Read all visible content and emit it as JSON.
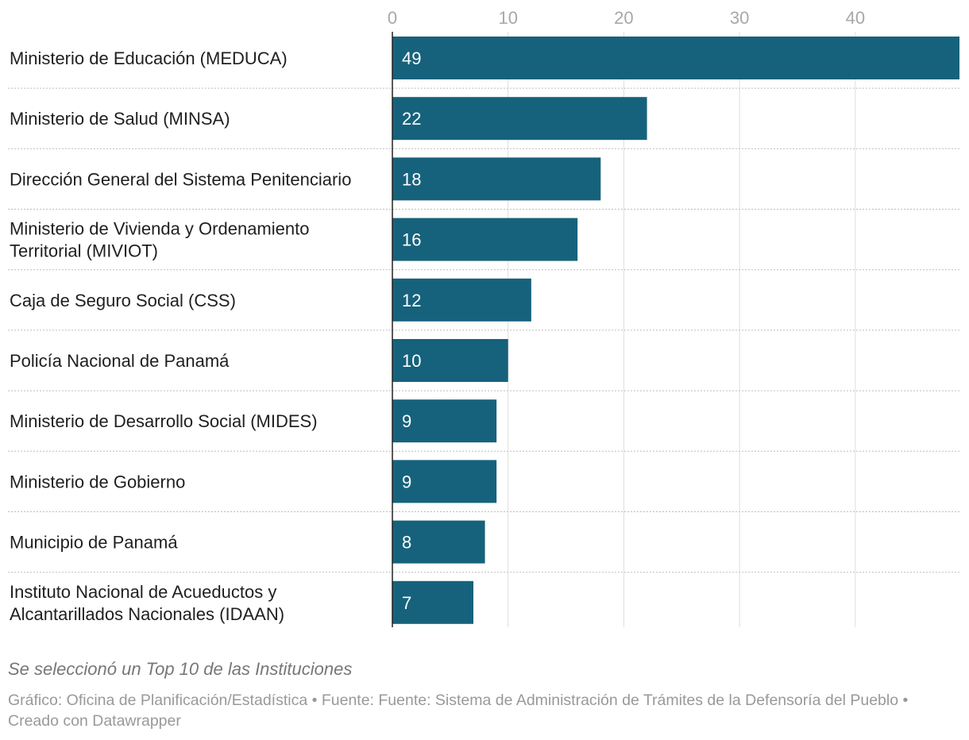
{
  "chart_data": {
    "type": "bar",
    "orientation": "horizontal",
    "categories": [
      "Ministerio de Educación (MEDUCA)",
      "Ministerio de Salud (MINSA)",
      "Dirección General del Sistema Penitenciario",
      "Ministerio de Vivienda y Ordenamiento Territorial (MIVIOT)",
      "Caja de Seguro Social (CSS)",
      "Policía Nacional de Panamá",
      "Ministerio de Desarrollo Social (MIDES)",
      "Ministerio de Gobierno",
      "Municipio de Panamá",
      "Instituto Nacional de Acueductos y Alcantarillados Nacionales (IDAAN)"
    ],
    "category_lines": [
      [
        "Ministerio de Educación (MEDUCA)"
      ],
      [
        "Ministerio de Salud (MINSA)"
      ],
      [
        "Dirección General del Sistema Penitenciario"
      ],
      [
        "Ministerio de Vivienda y Ordenamiento",
        "Territorial (MIVIOT)"
      ],
      [
        "Caja de Seguro Social (CSS)"
      ],
      [
        "Policía Nacional de Panamá"
      ],
      [
        "Ministerio de Desarrollo Social (MIDES)"
      ],
      [
        "Ministerio de Gobierno"
      ],
      [
        "Municipio de Panamá"
      ],
      [
        "Instituto Nacional de Acueductos y",
        "Alcantarillados Nacionales (IDAAN)"
      ]
    ],
    "values": [
      49,
      22,
      18,
      16,
      12,
      10,
      9,
      9,
      8,
      7
    ],
    "value_labels": [
      "49",
      "22",
      "18",
      "16",
      "12",
      "10",
      "9",
      "9",
      "8",
      "7"
    ],
    "x_ticks": [
      0,
      10,
      20,
      30,
      40
    ],
    "x_tick_labels": [
      "0",
      "10",
      "20",
      "30",
      "40"
    ],
    "xlim": [
      0,
      49
    ],
    "grid": true,
    "title": "",
    "xlabel": "",
    "ylabel": "",
    "bar_color": "#16627c"
  },
  "notes": "Se seleccionó un Top 10 de las Instituciones",
  "footer": "Gráfico: Oficina de Planificación/Estadística • Fuente: Fuente: Sistema de Administración de Trámites de la Defensoría del Pueblo • Creado con Datawrapper"
}
